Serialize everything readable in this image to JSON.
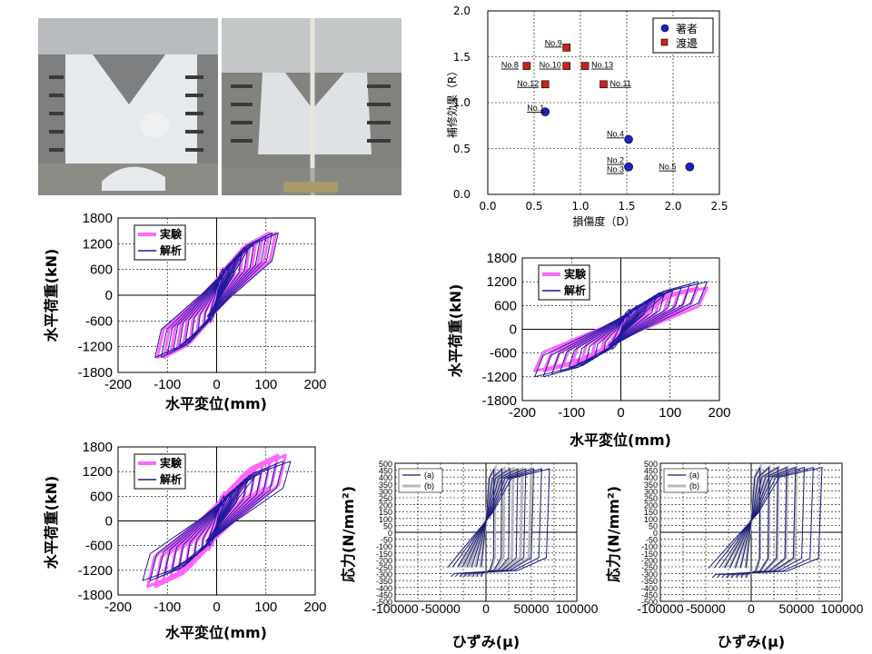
{
  "photos": {
    "photo_1_caption": "",
    "photo_2_caption": ""
  },
  "scatter": {
    "ylabel": "補修効果（R）",
    "xlabel": "損傷度（D）",
    "legend": [
      "著者",
      "渡邊"
    ],
    "xticks": [
      "0.0",
      "0.5",
      "1.0",
      "1.5",
      "2.0",
      "2.5"
    ],
    "yticks": [
      "0.0",
      "0.5",
      "1.0",
      "1.5",
      "2.0"
    ]
  },
  "hyst": {
    "ylabel": "水平荷重(kN)",
    "xlabel": "水平変位(mm)",
    "legend": [
      "実験",
      "解析"
    ],
    "yticks": [
      "1800",
      "1200",
      "600",
      "0",
      "-600",
      "-1200",
      "-1800"
    ],
    "xticks": [
      "-200",
      "-100",
      "0",
      "100",
      "200"
    ]
  },
  "stress": {
    "ylabel": "応力(N/mm²)",
    "xlabel": "ひずみ(μ)",
    "legend": [
      "(a)",
      "(b)"
    ],
    "yticks": [
      "500",
      "450",
      "400",
      "350",
      "300",
      "250",
      "200",
      "150",
      "100",
      "50",
      "0",
      "-50",
      "-100",
      "-150",
      "-200",
      "-250",
      "-300",
      "-350",
      "-400",
      "-450",
      "-500"
    ],
    "xticks": [
      "-100000",
      "-50000",
      "0",
      "50000",
      "100000"
    ]
  },
  "colors": {
    "author": "#1a22c8",
    "watanabe": "#c8231a",
    "experiment": "#ff66ff",
    "analysis": "#1a1a9a",
    "series_a": "#1a1a7a",
    "series_b": "#b8b8b8"
  },
  "chart_data": [
    {
      "type": "scatter",
      "xlabel": "損傷度（D）",
      "ylabel": "補修効果（R）",
      "xlim": [
        0,
        2.5
      ],
      "ylim": [
        0,
        2.0
      ],
      "grid": true,
      "legend_position": "top-right",
      "series": [
        {
          "name": "著者",
          "marker": "circle",
          "points": [
            {
              "label": "No.1",
              "x": 0.62,
              "y": 0.9
            },
            {
              "label": "No.4",
              "x": 1.52,
              "y": 0.6
            },
            {
              "label": "No.2",
              "x": 1.52,
              "y": 0.3
            },
            {
              "label": "No.3",
              "x": 1.52,
              "y": 0.3
            },
            {
              "label": "No.5",
              "x": 2.18,
              "y": 0.3
            }
          ]
        },
        {
          "name": "渡邊",
          "marker": "square",
          "points": [
            {
              "label": "No.9",
              "x": 0.85,
              "y": 1.6
            },
            {
              "label": "No.8",
              "x": 0.42,
              "y": 1.4
            },
            {
              "label": "No.10",
              "x": 0.85,
              "y": 1.4
            },
            {
              "label": "No.13",
              "x": 1.05,
              "y": 1.4
            },
            {
              "label": "No.12",
              "x": 0.62,
              "y": 1.2
            },
            {
              "label": "No.11",
              "x": 1.25,
              "y": 1.2
            }
          ]
        }
      ]
    },
    {
      "type": "line",
      "xlabel": "水平変位(mm)",
      "ylabel": "水平荷重(kN)",
      "xlim": [
        -200,
        200
      ],
      "ylim": [
        -1800,
        1800
      ],
      "series": [
        {
          "name": "実験",
          "max_disp": 120,
          "max_load": 1450
        },
        {
          "name": "解析",
          "max_disp": 125,
          "max_load": 1450
        }
      ]
    },
    {
      "type": "line",
      "xlabel": "水平変位(mm)",
      "ylabel": "水平荷重(kN)",
      "xlim": [
        -200,
        200
      ],
      "ylim": [
        -1800,
        1800
      ],
      "series": [
        {
          "name": "実験",
          "max_disp": 175,
          "max_load": 1050
        },
        {
          "name": "解析",
          "max_disp": 175,
          "max_load": 1200
        }
      ]
    },
    {
      "type": "line",
      "xlabel": "水平変位(mm)",
      "ylabel": "水平荷重(kN)",
      "xlim": [
        -200,
        200
      ],
      "ylim": [
        -1800,
        1800
      ],
      "series": [
        {
          "name": "実験",
          "max_disp": 140,
          "max_load": 1600
        },
        {
          "name": "解析",
          "max_disp": 150,
          "max_load": 1450
        }
      ]
    },
    {
      "type": "line",
      "xlabel": "ひずみ(μ)",
      "ylabel": "応力(N/mm²)",
      "xlim": [
        -100000,
        100000
      ],
      "ylim": [
        -500,
        500
      ],
      "series": [
        {
          "name": "(a)",
          "max_strain": 70000,
          "max_stress": 460
        },
        {
          "name": "(b)",
          "max_strain": 50000,
          "max_stress": 460
        }
      ]
    },
    {
      "type": "line",
      "xlabel": "ひずみ(μ)",
      "ylabel": "応力(N/mm²)",
      "xlim": [
        -100000,
        100000
      ],
      "ylim": [
        -500,
        500
      ],
      "series": [
        {
          "name": "(a)",
          "max_strain": 78000,
          "max_stress": 470
        },
        {
          "name": "(b)",
          "max_strain": 50000,
          "max_stress": 470
        }
      ]
    }
  ]
}
